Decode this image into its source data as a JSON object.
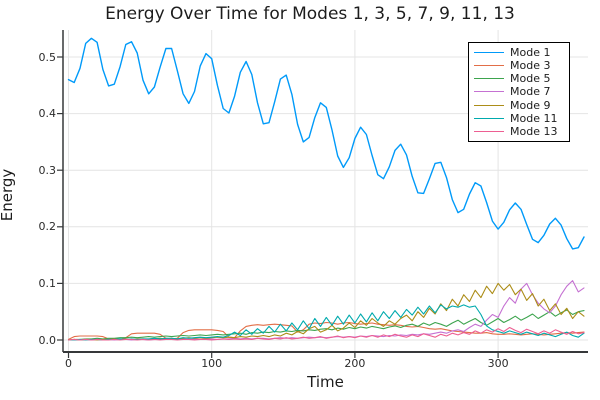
{
  "title": "Energy Over Time for Modes 1, 3, 5, 7, 9, 11, 13",
  "x_axis": {
    "label": "Time",
    "tick_values": [
      0,
      100,
      200,
      300
    ],
    "tick_labels": [
      "0",
      "100",
      "200",
      "300"
    ]
  },
  "y_axis": {
    "label": "Energy",
    "tick_values": [
      0.0,
      0.1,
      0.2,
      0.3,
      0.4,
      0.5
    ],
    "tick_labels": [
      "0.0",
      "0.1",
      "0.2",
      "0.3",
      "0.4",
      "0.5"
    ]
  },
  "legend": {
    "position": "top-right"
  },
  "colors": {
    "grid": "#e4e4e4",
    "axis": "#36383a",
    "text": "#1c1c1c"
  },
  "chart_data": {
    "type": "line",
    "title": "Energy Over Time for Modes 1, 3, 5, 7, 9, 11, 13",
    "xlabel": "Time",
    "ylabel": "Energy",
    "xlim": [
      -4,
      363
    ],
    "ylim": [
      -0.021,
      0.548
    ],
    "grid": true,
    "legend_position": "top-right",
    "x": [
      0,
      4,
      8,
      12,
      16,
      20,
      24,
      28,
      32,
      36,
      40,
      44,
      48,
      52,
      56,
      60,
      64,
      68,
      72,
      76,
      80,
      84,
      88,
      92,
      96,
      100,
      104,
      108,
      112,
      116,
      120,
      124,
      128,
      132,
      136,
      140,
      144,
      148,
      152,
      156,
      160,
      164,
      168,
      172,
      176,
      180,
      184,
      188,
      192,
      196,
      200,
      204,
      208,
      212,
      216,
      220,
      224,
      228,
      232,
      236,
      240,
      244,
      248,
      252,
      256,
      260,
      264,
      268,
      272,
      276,
      280,
      284,
      288,
      292,
      296,
      300,
      304,
      308,
      312,
      316,
      320,
      324,
      328,
      332,
      336,
      340,
      344,
      348,
      352,
      356,
      360
    ],
    "series": [
      {
        "name": "Mode 1",
        "color": "#009af9",
        "width": 1.4,
        "values": [
          0.46,
          0.455,
          0.48,
          0.524,
          0.533,
          0.526,
          0.478,
          0.449,
          0.452,
          0.483,
          0.522,
          0.527,
          0.507,
          0.459,
          0.435,
          0.447,
          0.482,
          0.515,
          0.515,
          0.476,
          0.435,
          0.418,
          0.439,
          0.484,
          0.506,
          0.497,
          0.45,
          0.409,
          0.401,
          0.431,
          0.473,
          0.492,
          0.469,
          0.419,
          0.382,
          0.384,
          0.421,
          0.461,
          0.468,
          0.434,
          0.381,
          0.35,
          0.358,
          0.393,
          0.419,
          0.411,
          0.371,
          0.325,
          0.305,
          0.322,
          0.356,
          0.376,
          0.363,
          0.326,
          0.292,
          0.285,
          0.306,
          0.335,
          0.346,
          0.327,
          0.289,
          0.26,
          0.259,
          0.285,
          0.312,
          0.314,
          0.287,
          0.248,
          0.225,
          0.231,
          0.258,
          0.278,
          0.272,
          0.243,
          0.21,
          0.196,
          0.208,
          0.23,
          0.242,
          0.231,
          0.204,
          0.178,
          0.172,
          0.185,
          0.205,
          0.215,
          0.203,
          0.179,
          0.161,
          0.163,
          0.182
        ]
      },
      {
        "name": "Mode 3",
        "color": "#e26e47",
        "width": 1.1,
        "values": [
          0.001,
          0.006,
          0.007,
          0.007,
          0.007,
          0.007,
          0.006,
          0.002,
          0.001,
          0.001,
          0.004,
          0.011,
          0.012,
          0.012,
          0.012,
          0.012,
          0.01,
          0.003,
          0.002,
          0.003,
          0.013,
          0.017,
          0.018,
          0.018,
          0.018,
          0.018,
          0.017,
          0.015,
          0.005,
          0.004,
          0.016,
          0.024,
          0.026,
          0.027,
          0.026,
          0.027,
          0.028,
          0.027,
          0.026,
          0.025,
          0.014,
          0.018,
          0.028,
          0.03,
          0.029,
          0.031,
          0.03,
          0.028,
          0.03,
          0.031,
          0.029,
          0.028,
          0.029,
          0.03,
          0.028,
          0.027,
          0.026,
          0.027,
          0.026,
          0.024,
          0.023,
          0.024,
          0.022,
          0.02,
          0.019,
          0.02,
          0.018,
          0.016,
          0.015,
          0.014,
          0.013,
          0.012,
          0.012,
          0.013,
          0.011,
          0.01,
          0.01,
          0.011,
          0.01,
          0.009,
          0.01,
          0.011,
          0.01,
          0.009,
          0.01,
          0.011,
          0.012,
          0.013,
          0.012,
          0.013,
          0.014
        ]
      },
      {
        "name": "Mode 5",
        "color": "#3da44e",
        "width": 1.1,
        "values": [
          0.0,
          0.001,
          0.001,
          0.002,
          0.002,
          0.003,
          0.002,
          0.003,
          0.003,
          0.004,
          0.004,
          0.005,
          0.004,
          0.005,
          0.006,
          0.005,
          0.006,
          0.007,
          0.006,
          0.007,
          0.008,
          0.007,
          0.008,
          0.009,
          0.008,
          0.009,
          0.01,
          0.009,
          0.01,
          0.011,
          0.012,
          0.01,
          0.013,
          0.012,
          0.014,
          0.013,
          0.015,
          0.014,
          0.016,
          0.015,
          0.017,
          0.016,
          0.018,
          0.017,
          0.019,
          0.02,
          0.018,
          0.021,
          0.019,
          0.022,
          0.02,
          0.023,
          0.021,
          0.024,
          0.022,
          0.02,
          0.023,
          0.025,
          0.022,
          0.026,
          0.028,
          0.024,
          0.03,
          0.026,
          0.031,
          0.028,
          0.024,
          0.03,
          0.035,
          0.028,
          0.033,
          0.038,
          0.031,
          0.026,
          0.032,
          0.038,
          0.031,
          0.036,
          0.042,
          0.035,
          0.04,
          0.046,
          0.038,
          0.044,
          0.05,
          0.042,
          0.048,
          0.053,
          0.045,
          0.05,
          0.052
        ]
      },
      {
        "name": "Mode 7",
        "color": "#c571d2",
        "width": 1.1,
        "values": [
          0.0,
          0.0,
          0.0,
          0.001,
          0.0,
          0.001,
          0.0,
          0.001,
          0.0,
          0.001,
          0.001,
          0.0,
          0.001,
          0.001,
          0.0,
          0.001,
          0.001,
          0.002,
          0.001,
          0.001,
          0.002,
          0.001,
          0.002,
          0.001,
          0.002,
          0.002,
          0.001,
          0.002,
          0.002,
          0.003,
          0.002,
          0.003,
          0.002,
          0.003,
          0.003,
          0.002,
          0.003,
          0.004,
          0.003,
          0.004,
          0.003,
          0.004,
          0.005,
          0.004,
          0.005,
          0.004,
          0.005,
          0.006,
          0.005,
          0.006,
          0.005,
          0.007,
          0.006,
          0.008,
          0.007,
          0.006,
          0.008,
          0.007,
          0.009,
          0.008,
          0.01,
          0.009,
          0.011,
          0.01,
          0.012,
          0.014,
          0.012,
          0.016,
          0.018,
          0.015,
          0.022,
          0.028,
          0.024,
          0.035,
          0.045,
          0.04,
          0.06,
          0.075,
          0.065,
          0.09,
          0.1,
          0.08,
          0.065,
          0.055,
          0.048,
          0.06,
          0.08,
          0.095,
          0.105,
          0.085,
          0.092
        ]
      },
      {
        "name": "Mode 9",
        "color": "#ac8d18",
        "width": 1.1,
        "values": [
          0.0,
          0.001,
          0.0,
          0.001,
          0.001,
          0.0,
          0.001,
          0.001,
          0.002,
          0.001,
          0.002,
          0.001,
          0.002,
          0.002,
          0.001,
          0.002,
          0.003,
          0.002,
          0.003,
          0.002,
          0.003,
          0.004,
          0.003,
          0.004,
          0.003,
          0.004,
          0.005,
          0.004,
          0.005,
          0.004,
          0.006,
          0.005,
          0.007,
          0.006,
          0.008,
          0.006,
          0.009,
          0.007,
          0.012,
          0.009,
          0.015,
          0.011,
          0.02,
          0.024,
          0.014,
          0.018,
          0.026,
          0.016,
          0.021,
          0.03,
          0.022,
          0.034,
          0.026,
          0.038,
          0.03,
          0.024,
          0.034,
          0.028,
          0.038,
          0.044,
          0.034,
          0.05,
          0.04,
          0.056,
          0.046,
          0.064,
          0.052,
          0.072,
          0.06,
          0.08,
          0.068,
          0.088,
          0.075,
          0.095,
          0.082,
          0.1,
          0.088,
          0.098,
          0.08,
          0.09,
          0.07,
          0.082,
          0.06,
          0.072,
          0.052,
          0.064,
          0.045,
          0.056,
          0.038,
          0.05,
          0.042
        ]
      },
      {
        "name": "Mode 11",
        "color": "#00aaad",
        "width": 1.1,
        "values": [
          0.0,
          0.0,
          0.001,
          0.0,
          0.001,
          0.001,
          0.0,
          0.001,
          0.001,
          0.002,
          0.001,
          0.002,
          0.001,
          0.002,
          0.002,
          0.003,
          0.002,
          0.003,
          0.003,
          0.002,
          0.004,
          0.003,
          0.004,
          0.005,
          0.004,
          0.005,
          0.006,
          0.005,
          0.008,
          0.014,
          0.008,
          0.018,
          0.01,
          0.02,
          0.012,
          0.024,
          0.014,
          0.028,
          0.016,
          0.03,
          0.018,
          0.034,
          0.02,
          0.038,
          0.024,
          0.04,
          0.026,
          0.042,
          0.028,
          0.044,
          0.03,
          0.046,
          0.032,
          0.048,
          0.034,
          0.05,
          0.038,
          0.052,
          0.04,
          0.054,
          0.044,
          0.058,
          0.046,
          0.06,
          0.048,
          0.062,
          0.055,
          0.06,
          0.058,
          0.062,
          0.058,
          0.06,
          0.045,
          0.025,
          0.018,
          0.015,
          0.012,
          0.016,
          0.013,
          0.01,
          0.014,
          0.011,
          0.008,
          0.012,
          0.009,
          0.006,
          0.01,
          0.014,
          0.008,
          0.005,
          0.012
        ]
      },
      {
        "name": "Mode 13",
        "color": "#ed5f92",
        "width": 1.1,
        "values": [
          0.0,
          0.001,
          0.0,
          0.001,
          0.0,
          0.001,
          0.0,
          0.0,
          0.001,
          0.0,
          0.001,
          0.001,
          0.0,
          0.001,
          0.0,
          0.001,
          0.0,
          0.001,
          0.001,
          0.0,
          0.001,
          0.001,
          0.0,
          0.001,
          0.001,
          0.0,
          0.001,
          0.002,
          0.001,
          0.002,
          0.001,
          0.002,
          0.001,
          0.003,
          0.002,
          0.001,
          0.003,
          0.002,
          0.004,
          0.002,
          0.003,
          0.005,
          0.003,
          0.004,
          0.006,
          0.003,
          0.005,
          0.007,
          0.004,
          0.006,
          0.004,
          0.007,
          0.005,
          0.008,
          0.005,
          0.009,
          0.006,
          0.01,
          0.007,
          0.005,
          0.009,
          0.006,
          0.011,
          0.008,
          0.005,
          0.01,
          0.007,
          0.012,
          0.009,
          0.013,
          0.01,
          0.016,
          0.012,
          0.018,
          0.014,
          0.02,
          0.015,
          0.022,
          0.017,
          0.013,
          0.019,
          0.015,
          0.011,
          0.016,
          0.012,
          0.018,
          0.014,
          0.01,
          0.015,
          0.011,
          0.013
        ]
      }
    ]
  }
}
